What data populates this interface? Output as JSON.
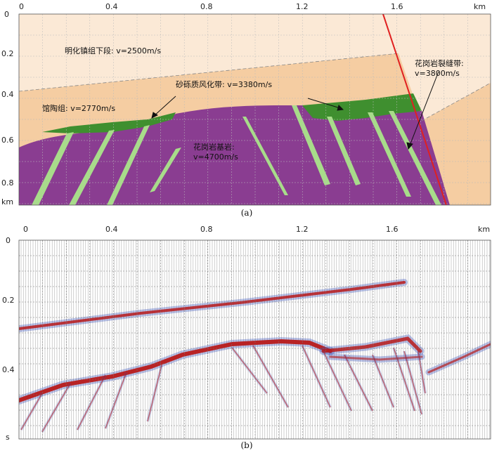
{
  "panel_a": {
    "x_ticks": [
      "0",
      "0.4",
      "0.8",
      "1.2",
      "1.6"
    ],
    "x_unit": "km",
    "y_ticks": [
      "0",
      "0.2",
      "0.4",
      "0.6",
      "0.8"
    ],
    "y_unit": "km",
    "caption": "(a)",
    "labels": {
      "upper_formation": "明化镇组下段: v=2500m/s",
      "guantao": "馆陶组: v=2770m/s",
      "weathered": "砂砾质风化带: v=3380m/s",
      "fracture": "花岗岩裂缝带:",
      "fracture_velocity": "v=3800m/s",
      "granite": "花岗岩基岩:",
      "granite_velocity": "v=4700m/s"
    },
    "colors": {
      "top_layer": "#fbe9d6",
      "mid_layer": "#f5cda2",
      "right_block_upper": "#fbe9d6",
      "right_block_lower": "#f5cda2",
      "granite": "#8a3d91",
      "weathered": "#3f8f2f",
      "fractures": "#a8dc8a",
      "fault": "#e02020"
    }
  },
  "panel_b": {
    "x_ticks": [
      "0",
      "0.4",
      "0.8",
      "1.2",
      "1.6"
    ],
    "x_unit": "km",
    "y_ticks": [
      "0",
      "0.2",
      "0.4"
    ],
    "y_unit": "s",
    "caption": "(b)"
  }
}
